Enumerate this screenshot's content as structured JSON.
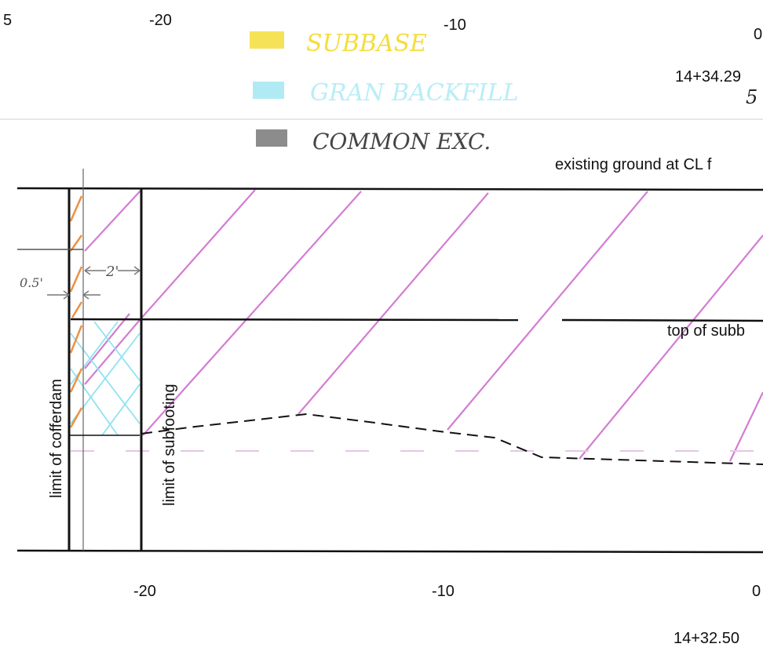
{
  "top_axis": {
    "left_edge_label": "5",
    "labels": [
      "-20",
      "-10"
    ],
    "right_edge_label": "0"
  },
  "bottom_axis": {
    "labels": [
      "-20",
      "-10",
      "0"
    ]
  },
  "legend": [
    {
      "label": "SUBBASE",
      "color": "#f5dd3a"
    },
    {
      "label": "GRAN BACKFILL",
      "color": "#8fe3f0"
    },
    {
      "label": "COMMON EXC.",
      "color": "#8c8c8c"
    }
  ],
  "station_top": "14+34.29",
  "station_top_sub": "5",
  "station_bottom": "14+32.50",
  "annotations": {
    "existing_ground": "existing ground at CL f",
    "top_of_subbase": "top of subb",
    "limit_of_cofferdam": "limit of cofferdam",
    "limit_of_subfooting": "limit of subfooting",
    "dim_2ft": "2'",
    "dim_half_ft": "0.5'"
  },
  "colors": {
    "hatch": "#cc66cc",
    "orange": "#f09040",
    "cyan": "#8fe3f0",
    "line": "#111111"
  }
}
